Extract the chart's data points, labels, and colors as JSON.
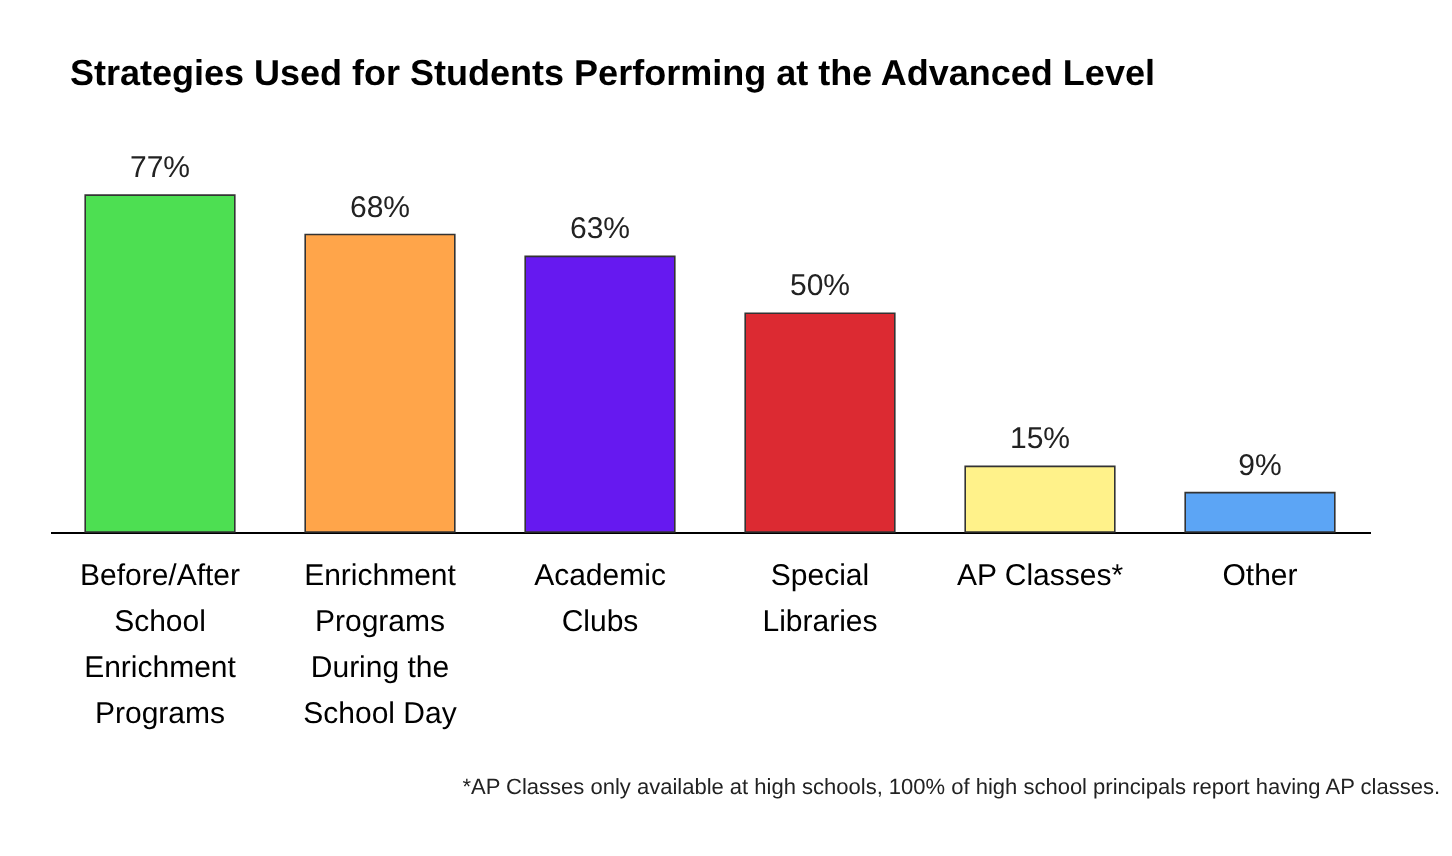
{
  "chart_data": {
    "type": "bar",
    "title": "Strategies Used for Students Performing at the Advanced Level",
    "categories": [
      "Before/After School Enrichment Programs",
      "Enrichment Programs During the School Day",
      "Academic Clubs",
      "Special Libraries",
      "AP Classes*",
      "Other"
    ],
    "values": [
      77,
      68,
      63,
      50,
      15,
      9
    ],
    "colors": [
      "#4ddf52",
      "#ffa54a",
      "#6619f0",
      "#dc2a32",
      "#fff28a",
      "#5ca5f5"
    ],
    "value_labels": [
      "77%",
      "68%",
      "63%",
      "50%",
      "15%",
      "9%"
    ],
    "annotations": [
      "*AP Classes only available at high schools, 100% of high school principals report having AP classes."
    ]
  }
}
